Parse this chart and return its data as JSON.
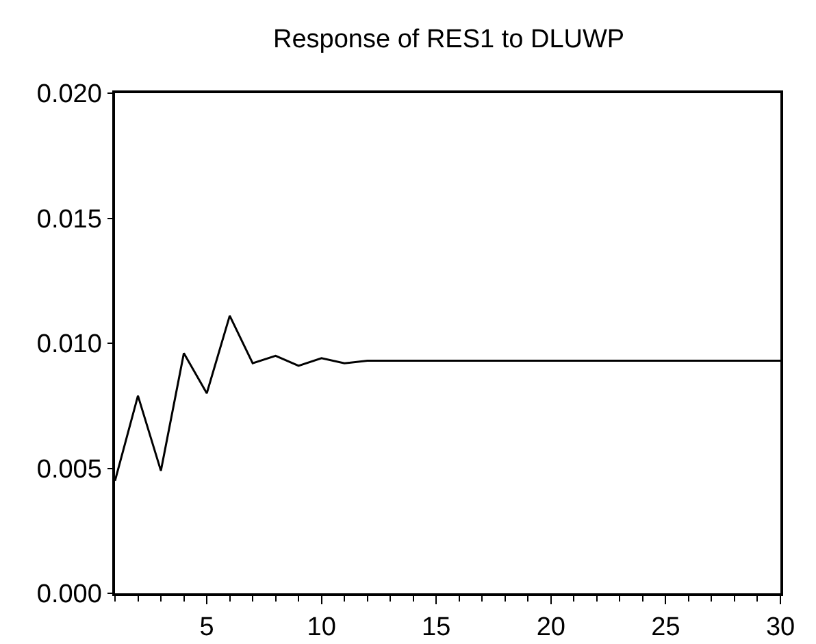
{
  "chart_data": {
    "type": "line",
    "title": "Response of RES1 to DLUWP",
    "x": [
      1,
      2,
      3,
      4,
      5,
      6,
      7,
      8,
      9,
      10,
      11,
      12,
      13,
      14,
      15,
      16,
      17,
      18,
      19,
      20,
      21,
      22,
      23,
      24,
      25,
      26,
      27,
      28,
      29,
      30
    ],
    "series": [
      {
        "color": "#000000",
        "values": [
          0.0045,
          0.0079,
          0.0049,
          0.0096,
          0.008,
          0.0111,
          0.0092,
          0.0095,
          0.0091,
          0.0094,
          0.0092,
          0.0093,
          0.0093,
          0.0093,
          0.0093,
          0.0093,
          0.0093,
          0.0093,
          0.0093,
          0.0093,
          0.0093,
          0.0093,
          0.0093,
          0.0093,
          0.0093,
          0.0093,
          0.0093,
          0.0093,
          0.0093,
          0.0093
        ]
      }
    ],
    "xlim": [
      1,
      30
    ],
    "xticks": [
      5,
      10,
      15,
      20,
      25,
      30
    ],
    "ylim": [
      0,
      0.02
    ],
    "yticks": [
      {
        "value": 0,
        "label": "0.000"
      },
      {
        "value": 0.005,
        "label": "0.005"
      },
      {
        "value": 0.01,
        "label": "0.010"
      },
      {
        "value": 0.015,
        "label": "0.015"
      },
      {
        "value": 0.02,
        "label": "0.020"
      }
    ],
    "grid": false,
    "marker": "none",
    "line_style": "solid"
  }
}
